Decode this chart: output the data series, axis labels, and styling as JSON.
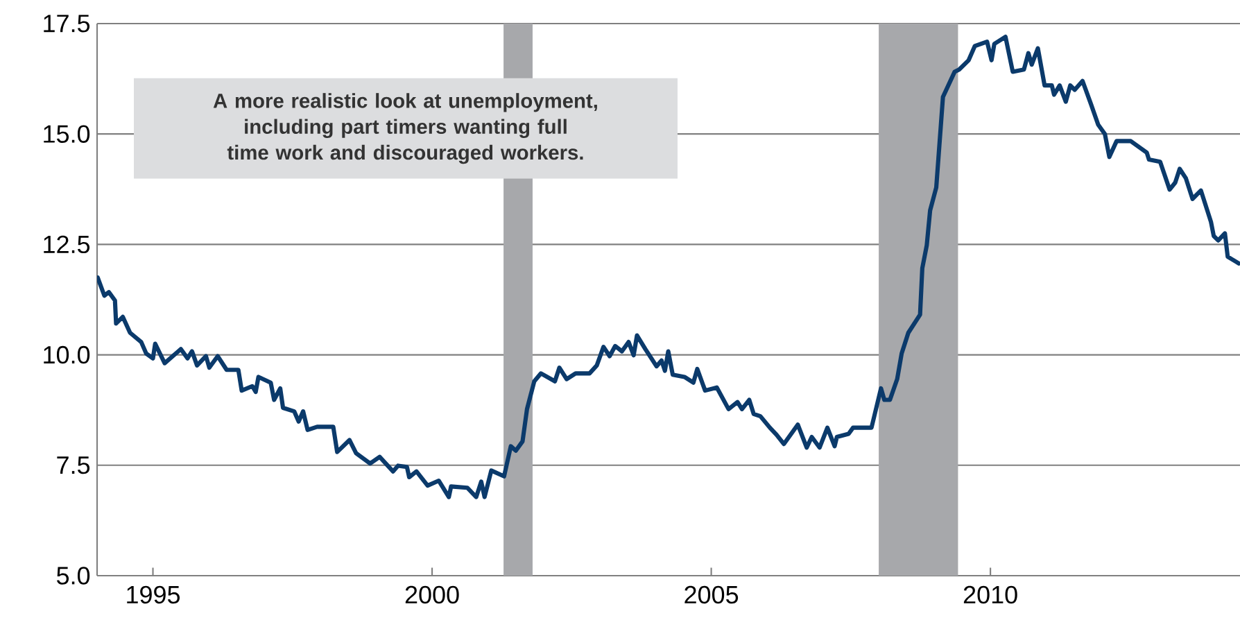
{
  "chart_data": {
    "type": "line",
    "x": [
      1994.01,
      1994.13,
      1994.21,
      1994.32,
      1994.34,
      1994.46,
      1994.59,
      1994.79,
      1994.88,
      1995.0,
      1995.04,
      1995.21,
      1995.5,
      1995.62,
      1995.7,
      1995.79,
      1995.95,
      1996.01,
      1996.16,
      1996.32,
      1996.53,
      1996.59,
      1996.78,
      1996.84,
      1996.89,
      1997.11,
      1997.17,
      1997.28,
      1997.33,
      1997.53,
      1997.61,
      1997.69,
      1997.77,
      1997.94,
      1998.23,
      1998.3,
      1998.52,
      1998.64,
      1998.89,
      1999.06,
      1999.3,
      1999.39,
      1999.55,
      1999.59,
      1999.72,
      1999.92,
      2000.12,
      2000.3,
      2000.34,
      2000.63,
      2000.79,
      2000.88,
      2000.94,
      2001.06,
      2001.29,
      2001.41,
      2001.5,
      2001.62,
      2001.7,
      2001.83,
      2001.95,
      2002.2,
      2002.28,
      2002.41,
      2002.57,
      2002.82,
      2002.95,
      2003.07,
      2003.18,
      2003.28,
      2003.4,
      2003.52,
      2003.61,
      2003.67,
      2003.82,
      2004.02,
      2004.11,
      2004.17,
      2004.23,
      2004.31,
      2004.52,
      2004.68,
      2004.75,
      2004.89,
      2005.1,
      2005.31,
      2005.47,
      2005.55,
      2005.68,
      2005.76,
      2005.88,
      2006.05,
      2006.17,
      2006.3,
      2006.55,
      2006.71,
      2006.8,
      2006.94,
      2007.08,
      2007.21,
      2007.25,
      2007.46,
      2007.54,
      2007.87,
      2008.04,
      2008.1,
      2008.2,
      2008.33,
      2008.41,
      2008.53,
      2008.74,
      2008.78,
      2008.86,
      2008.92,
      2009.03,
      2009.15,
      2009.36,
      2009.44,
      2009.61,
      2009.72,
      2009.94,
      2010.02,
      2010.07,
      2010.27,
      2010.4,
      2010.6,
      2010.68,
      2010.74,
      2010.85,
      2010.97,
      2011.1,
      2011.14,
      2011.24,
      2011.35,
      2011.43,
      2011.51,
      2011.65,
      2011.8,
      2011.93,
      2012.05,
      2012.13,
      2012.26,
      2012.51,
      2012.8,
      2012.84,
      2013.04,
      2013.21,
      2013.31,
      2013.39,
      2013.5,
      2013.62,
      2013.77,
      2013.95,
      2014.0,
      2014.08,
      2014.2,
      2014.25,
      2014.45
    ],
    "values": [
      11.75,
      11.34,
      11.42,
      11.23,
      10.71,
      10.86,
      10.5,
      10.29,
      10.03,
      9.92,
      10.25,
      9.81,
      10.13,
      9.92,
      10.08,
      9.76,
      9.97,
      9.71,
      9.97,
      9.66,
      9.66,
      9.19,
      9.29,
      9.16,
      9.5,
      9.37,
      8.98,
      9.24,
      8.8,
      8.72,
      8.49,
      8.72,
      8.3,
      8.37,
      8.37,
      7.8,
      8.07,
      7.77,
      7.54,
      7.69,
      7.36,
      7.49,
      7.46,
      7.23,
      7.36,
      7.04,
      7.15,
      6.78,
      7.02,
      6.99,
      6.78,
      7.13,
      6.78,
      7.38,
      7.25,
      7.93,
      7.83,
      8.04,
      8.77,
      9.4,
      9.58,
      9.4,
      9.71,
      9.45,
      9.58,
      9.58,
      9.76,
      10.18,
      9.97,
      10.2,
      10.08,
      10.29,
      9.99,
      10.44,
      10.13,
      9.74,
      9.87,
      9.64,
      10.08,
      9.55,
      9.5,
      9.37,
      9.68,
      9.19,
      9.26,
      8.77,
      8.93,
      8.77,
      8.98,
      8.66,
      8.61,
      8.35,
      8.19,
      7.98,
      8.42,
      7.9,
      8.14,
      7.9,
      8.35,
      7.93,
      8.14,
      8.21,
      8.35,
      8.35,
      9.24,
      8.98,
      8.98,
      9.45,
      10.03,
      10.5,
      10.91,
      11.96,
      12.48,
      13.27,
      13.79,
      15.84,
      16.41,
      16.46,
      16.67,
      16.99,
      17.09,
      16.67,
      17.04,
      17.2,
      16.41,
      16.46,
      16.83,
      16.57,
      16.94,
      16.1,
      16.1,
      15.89,
      16.1,
      15.73,
      16.1,
      16.0,
      16.2,
      15.68,
      15.21,
      15.0,
      14.48,
      14.84,
      14.84,
      14.58,
      14.42,
      14.37,
      13.74,
      13.9,
      14.21,
      14.0,
      13.53,
      13.72,
      13.01,
      12.69,
      12.59,
      12.75,
      12.22,
      12.07
    ],
    "color": "#0b3a6b",
    "xlim": [
      1994,
      2014.47
    ],
    "ylim": [
      5,
      17.5
    ],
    "xticks": [
      1995,
      2000,
      2005,
      2010
    ],
    "yticks": [
      {
        "value": 5,
        "label": "5.0"
      },
      {
        "value": 7.5,
        "label": "7.5"
      },
      {
        "value": 10,
        "label": "10.0"
      },
      {
        "value": 12.5,
        "label": "12.5"
      },
      {
        "value": 15,
        "label": "15.0"
      },
      {
        "value": 17.5,
        "label": "17.5"
      }
    ],
    "grid": "y",
    "bands": [
      {
        "axis": "x",
        "from": 2001.28,
        "to": 2001.8,
        "color": "#a7a8ab"
      },
      {
        "axis": "x",
        "from": 2008.0,
        "to": 2009.42,
        "color": "#a7a8ab"
      }
    ],
    "annotations": [
      "A more realistic look at unemployment, including part timers wanting full time work and discouraged workers."
    ]
  }
}
